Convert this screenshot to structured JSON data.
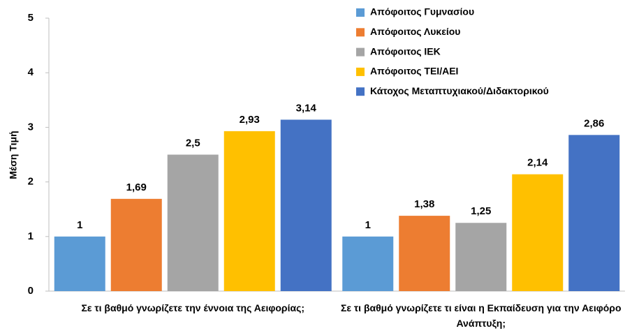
{
  "chart_data": {
    "type": "bar",
    "y_label": "Μέση Τιμή",
    "categories": [
      "Σε τι βαθμό γνωρίζετε την έννοια της Αειφορίας;",
      "Σε τι βαθμό γνωρίζετε τι είναι η Εκπαίδευση για την Αειφόρο Ανάπτυξη;"
    ],
    "series": [
      {
        "name": "Απόφοιτος Γυμνασίου",
        "color": "#5b9bd5",
        "values": [
          1,
          1
        ],
        "value_labels": [
          "1",
          "1"
        ]
      },
      {
        "name": "Απόφοιτος Λυκείου",
        "color": "#ed7d31",
        "values": [
          1.69,
          1.38
        ],
        "value_labels": [
          "1,69",
          "1,38"
        ]
      },
      {
        "name": "Απόφοιτος ΙΕΚ",
        "color": "#a5a5a5",
        "values": [
          2.5,
          1.25
        ],
        "value_labels": [
          "2,5",
          "1,25"
        ]
      },
      {
        "name": "Απόφοιτος ΤΕΙ/ΑΕΙ",
        "color": "#ffc000",
        "values": [
          2.93,
          2.14
        ],
        "value_labels": [
          "2,93",
          "2,14"
        ]
      },
      {
        "name": "Κάτοχος Μεταπτυχιακού/Διδακτορικού",
        "color": "#4472c4",
        "values": [
          3.14,
          2.86
        ],
        "value_labels": [
          "3,14",
          "2,86"
        ]
      }
    ],
    "ylim": [
      0,
      5
    ],
    "yticks": [
      0,
      1,
      2,
      3,
      4,
      5
    ],
    "grid": false,
    "legend": "top-right"
  }
}
